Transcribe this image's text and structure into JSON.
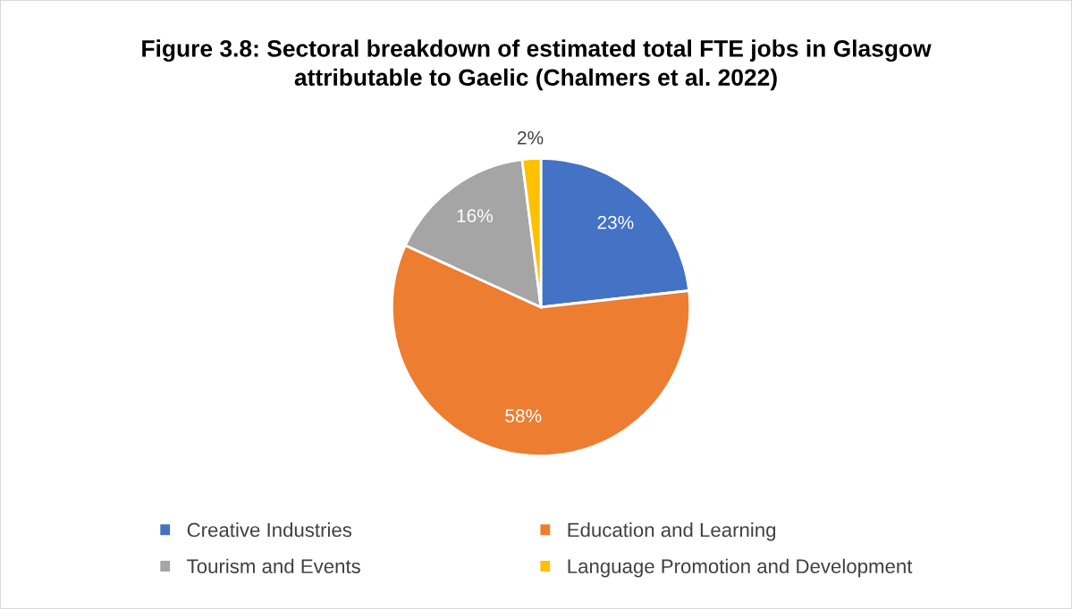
{
  "chart_data": {
    "type": "pie",
    "title": "Figure 3.8: Sectoral breakdown of estimated total FTE jobs in Glasgow\nattributable to Gaelic (Chalmers et al. 2022)",
    "categories": [
      "Creative Industries",
      "Education and Learning",
      "Tourism and Events",
      "Language Promotion and Development"
    ],
    "values": [
      23,
      58,
      16,
      2
    ],
    "colors": [
      "#4472c4",
      "#ed7d31",
      "#a5a5a5",
      "#ffc000"
    ],
    "value_labels": [
      "23%",
      "58%",
      "16%",
      "2%"
    ],
    "legend": "bottom"
  }
}
